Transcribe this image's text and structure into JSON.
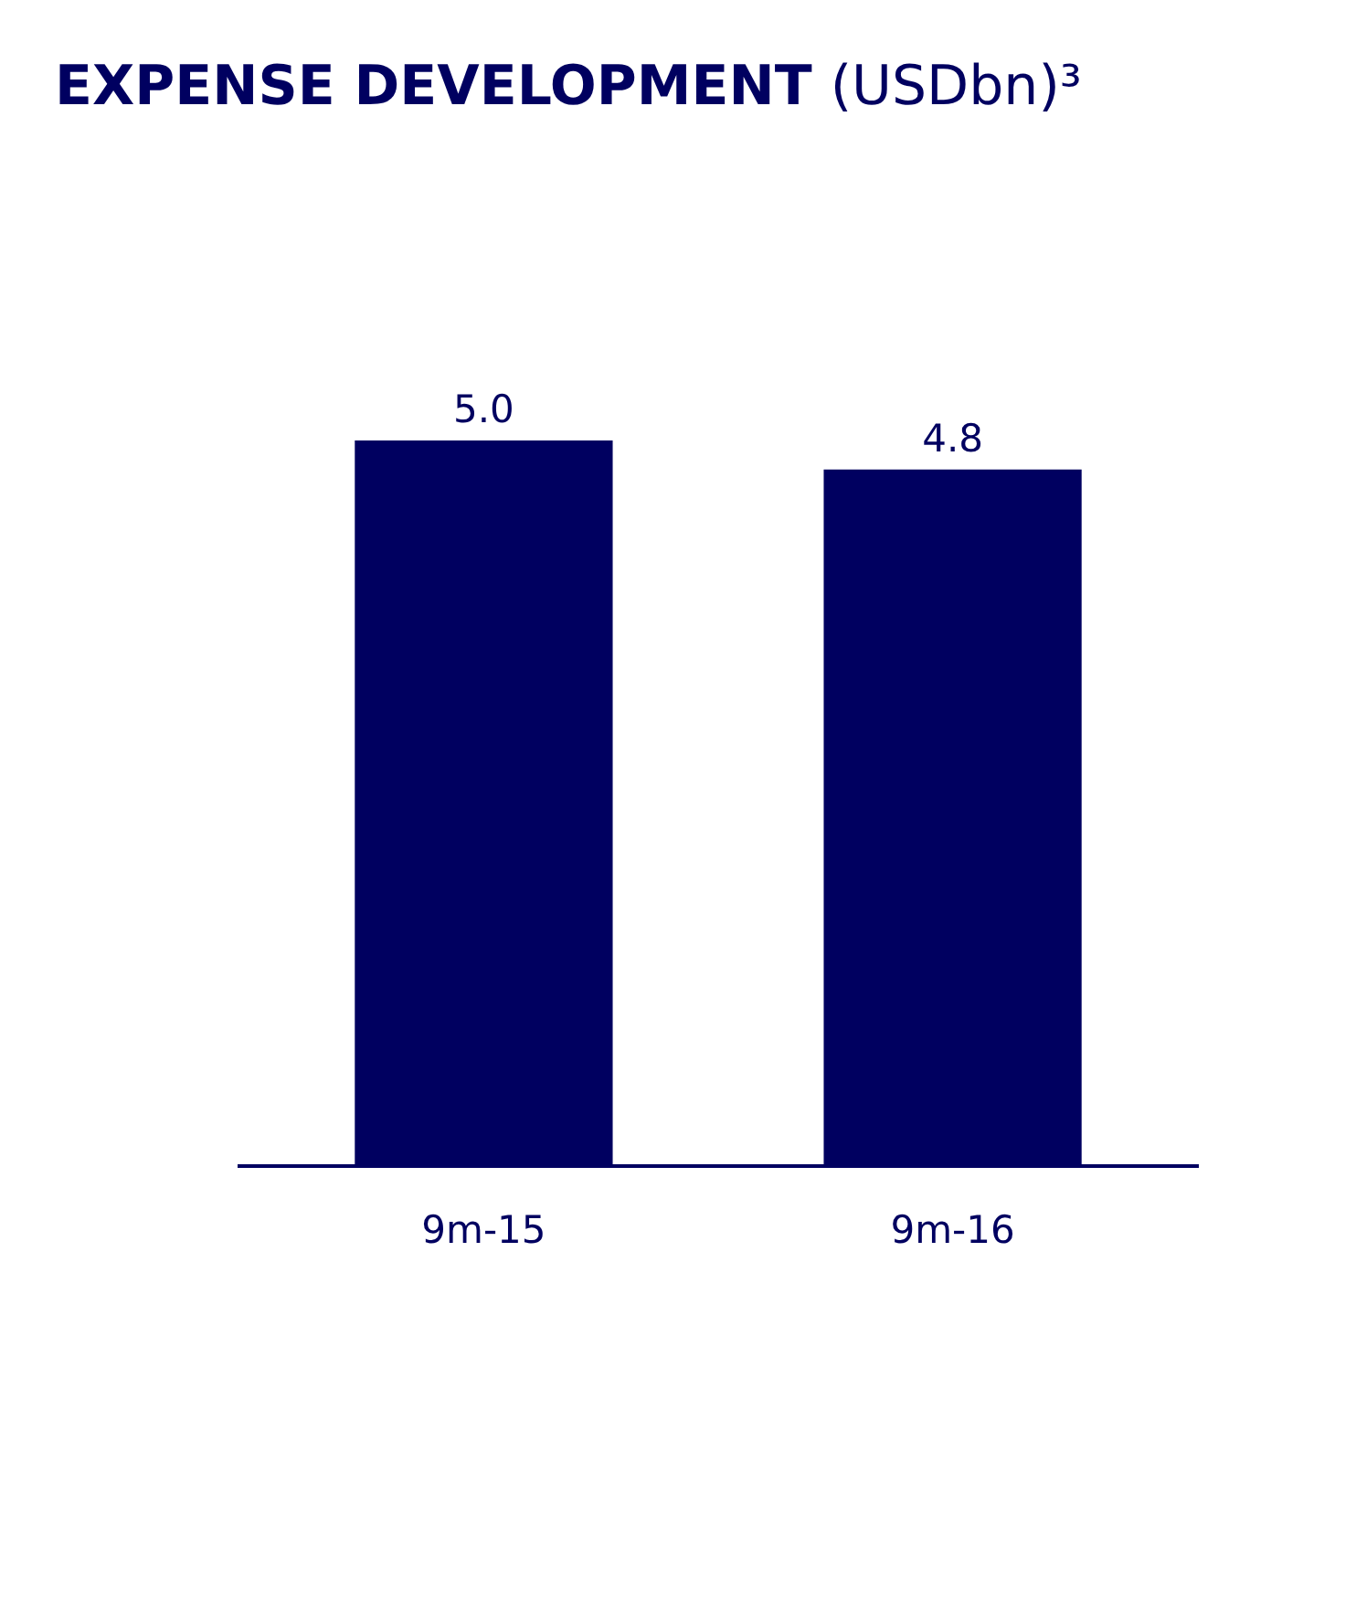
{
  "chart_data": {
    "type": "bar",
    "title": "EXPENSE DEVELOPMENT",
    "subtitle": "(USDbn)³",
    "categories": [
      "9m-15",
      "9m-16"
    ],
    "values": [
      5.0,
      4.8
    ],
    "color": "#000060",
    "value_labels": [
      "5.0",
      "4.8"
    ]
  }
}
